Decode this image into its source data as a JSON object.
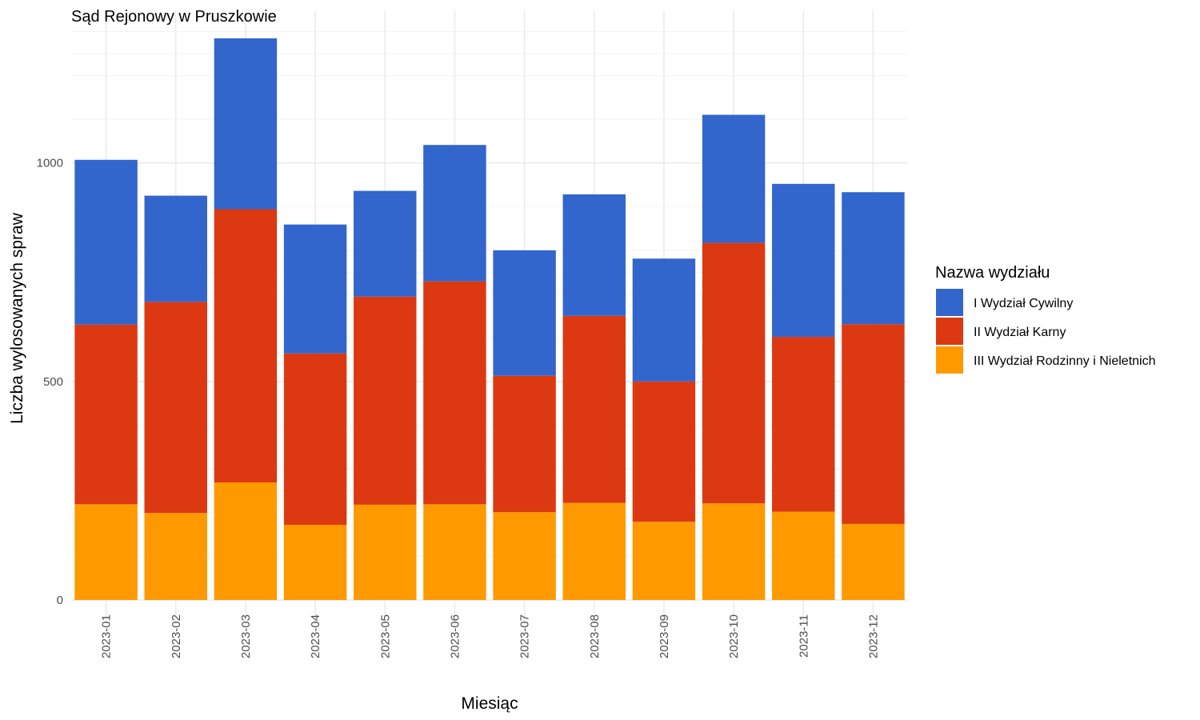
{
  "chart_data": {
    "type": "bar",
    "stacked": true,
    "title": "Sąd Rejonowy w Pruszkowie",
    "xlabel": "Miesiąc",
    "ylabel": "Liczba wylosowanych spraw",
    "ylim": [
      0,
      1300
    ],
    "yticks": [
      0,
      500,
      1000
    ],
    "grid": true,
    "legend_title": "Nazwa wydziału",
    "legend_position": "right",
    "categories": [
      "2023-01",
      "2023-02",
      "2023-03",
      "2023-04",
      "2023-05",
      "2023-06",
      "2023-07",
      "2023-08",
      "2023-09",
      "2023-10",
      "2023-11",
      "2023-12"
    ],
    "series": [
      {
        "name": "III Wydział Rodzinny i Nieletnich",
        "color": "#FF9900",
        "values": [
          219,
          199,
          269,
          172,
          218,
          219,
          201,
          222,
          179,
          221,
          202,
          174
        ]
      },
      {
        "name": "II Wydział Karny",
        "color": "#DC3912",
        "values": [
          411,
          483,
          625,
          392,
          476,
          510,
          312,
          428,
          321,
          596,
          400,
          457
        ]
      },
      {
        "name": "I Wydział Cywilny",
        "color": "#3366CC",
        "values": [
          377,
          243,
          391,
          295,
          242,
          312,
          287,
          278,
          281,
          293,
          350,
          302
        ]
      }
    ]
  }
}
